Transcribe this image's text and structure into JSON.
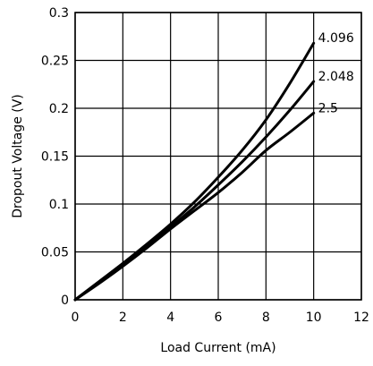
{
  "chart_data": {
    "type": "line",
    "title": "",
    "xlabel": "Load Current (mA)",
    "ylabel": "Dropout Voltage (V)",
    "xlim": [
      0,
      12
    ],
    "ylim": [
      0,
      0.3
    ],
    "x_ticks": [
      "0",
      "2",
      "4",
      "6",
      "8",
      "10",
      "12"
    ],
    "y_ticks": [
      "0",
      "0.05",
      "0.1",
      "0.15",
      "0.2",
      "0.25",
      "0.3"
    ],
    "grid": true,
    "series": [
      {
        "name": "4.096",
        "x": [
          0,
          1,
          2,
          3,
          4,
          5,
          6,
          7,
          8,
          9,
          10
        ],
        "y": [
          0,
          0.019,
          0.038,
          0.058,
          0.079,
          0.102,
          0.128,
          0.156,
          0.188,
          0.226,
          0.268
        ]
      },
      {
        "name": "2.048",
        "x": [
          0,
          1,
          2,
          3,
          4,
          5,
          6,
          7,
          8,
          9,
          10
        ],
        "y": [
          0,
          0.018,
          0.037,
          0.056,
          0.076,
          0.097,
          0.12,
          0.144,
          0.17,
          0.198,
          0.228
        ]
      },
      {
        "name": "2.5",
        "x": [
          0,
          1,
          2,
          3,
          4,
          5,
          6,
          7,
          8,
          9,
          10
        ],
        "y": [
          0,
          0.017,
          0.035,
          0.054,
          0.074,
          0.093,
          0.112,
          0.133,
          0.156,
          0.175,
          0.195
        ]
      }
    ]
  }
}
